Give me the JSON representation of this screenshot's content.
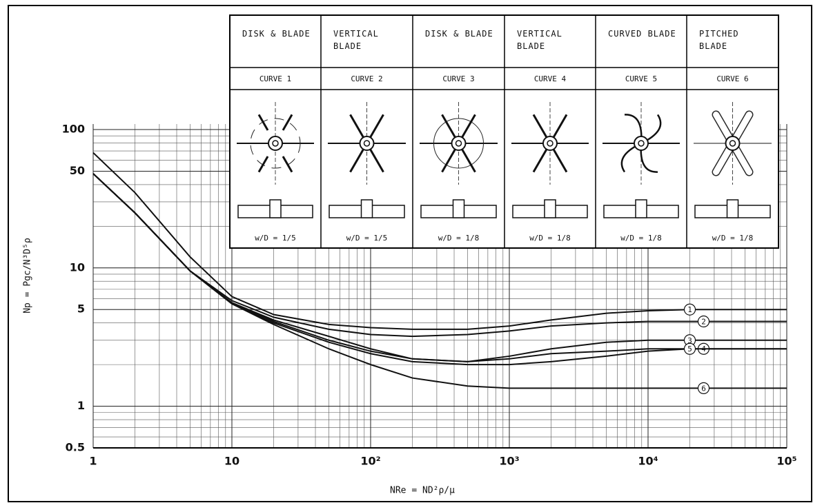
{
  "chart_data": {
    "type": "line",
    "x_label": "NRe = ND²ρ/μ",
    "y_label": "Np = Pgc/N³D⁵ρ",
    "xscale": "log",
    "yscale": "log",
    "grid": true,
    "xlim": [
      1,
      100000
    ],
    "ylim": [
      0.5,
      100
    ],
    "xticks": [
      1,
      10,
      {
        "value": 100,
        "label": "10²"
      },
      {
        "value": 1000,
        "label": "10³"
      },
      {
        "value": 10000,
        "label": "10⁴"
      },
      {
        "value": 100000,
        "label": "10⁵"
      }
    ],
    "yticks": [
      0.5,
      1,
      5,
      10,
      50,
      100
    ],
    "x": [
      1,
      2,
      5,
      10,
      20,
      50,
      100,
      200,
      500,
      1000,
      2000,
      5000,
      10000,
      20000,
      50000,
      100000
    ],
    "series": [
      {
        "name": "1",
        "color": "#111",
        "values": [
          68,
          35,
          12,
          6.2,
          4.6,
          3.9,
          3.7,
          3.6,
          3.6,
          3.8,
          4.2,
          4.7,
          4.9,
          5.0,
          5.0,
          5.0
        ]
      },
      {
        "name": "2",
        "color": "#111",
        "values": [
          48,
          25,
          9.5,
          5.8,
          4.4,
          3.6,
          3.3,
          3.2,
          3.3,
          3.5,
          3.8,
          4.0,
          4.1,
          4.1,
          4.1,
          4.1
        ]
      },
      {
        "name": "3",
        "color": "#111",
        "values": [
          48,
          25,
          9.5,
          5.6,
          4.2,
          3.2,
          2.6,
          2.2,
          2.1,
          2.3,
          2.6,
          2.9,
          3.0,
          3.0,
          3.0,
          3.0
        ]
      },
      {
        "name": "4",
        "color": "#111",
        "values": [
          48,
          25,
          9.5,
          5.6,
          4.1,
          3.0,
          2.5,
          2.2,
          2.1,
          2.2,
          2.4,
          2.5,
          2.6,
          2.6,
          2.6,
          2.6
        ]
      },
      {
        "name": "5",
        "color": "#111",
        "values": [
          48,
          25,
          9.5,
          5.5,
          4.0,
          2.9,
          2.4,
          2.1,
          2.0,
          2.0,
          2.1,
          2.3,
          2.5,
          2.6,
          2.6,
          2.6
        ]
      },
      {
        "name": "6",
        "color": "#111",
        "values": [
          48,
          25,
          9.5,
          5.5,
          3.9,
          2.6,
          2.0,
          1.6,
          1.4,
          1.35,
          1.35,
          1.35,
          1.35,
          1.35,
          1.35,
          1.35
        ]
      }
    ],
    "impellers": [
      {
        "type": "DISK & BLADE",
        "curve": "CURVE 1",
        "ratio": "w/D = 1/5"
      },
      {
        "type": "VERTICAL BLADE",
        "curve": "CURVE 2",
        "ratio": "w/D = 1/5"
      },
      {
        "type": "DISK & BLADE",
        "curve": "CURVE 3",
        "ratio": "w/D = 1/8"
      },
      {
        "type": "VERTICAL BLADE",
        "curve": "CURVE 4",
        "ratio": "w/D = 1/8"
      },
      {
        "type": "CURVED BLADE",
        "curve": "CURVE 5",
        "ratio": "w/D = 1/8"
      },
      {
        "type": "PITCHED BLADE",
        "curve": "CURVE 6",
        "ratio": "w/D = 1/8"
      }
    ]
  }
}
